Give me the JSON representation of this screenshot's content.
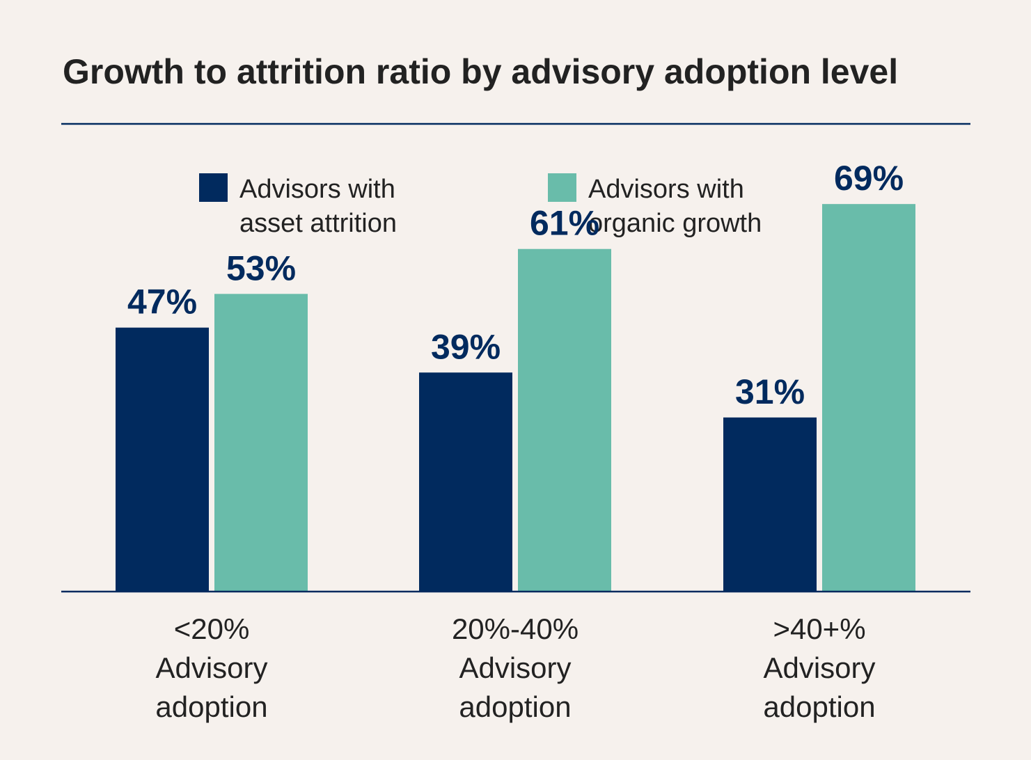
{
  "chart_data": {
    "type": "bar",
    "title": "Growth to attrition ratio by advisory adoption level",
    "categories": [
      [
        "<20%",
        "Advisory",
        "adoption"
      ],
      [
        "20%-40%",
        "Advisory",
        "adoption"
      ],
      [
        ">40+%",
        "Advisory",
        "adoption"
      ]
    ],
    "series": [
      {
        "name": "Advisors with asset attrition",
        "name_lines": [
          "Advisors with",
          "asset attrition"
        ],
        "values": [
          47,
          39,
          31
        ],
        "labels": [
          "47%",
          "39%",
          "31%"
        ],
        "color": "#012a5e"
      },
      {
        "name": "Advisors with organic growth",
        "name_lines": [
          "Advisors with",
          "organic growth"
        ],
        "values": [
          53,
          61,
          69
        ],
        "labels": [
          "53%",
          "61%",
          "69%"
        ],
        "color": "#69bcaa"
      }
    ],
    "unit": "%",
    "ylim": [
      0,
      100
    ],
    "grid": false,
    "legend_position": "top-center",
    "colors": {
      "background": "#f6f1ed",
      "rule": "#012a5e",
      "text": "#222222",
      "label": "#012a5e"
    }
  }
}
